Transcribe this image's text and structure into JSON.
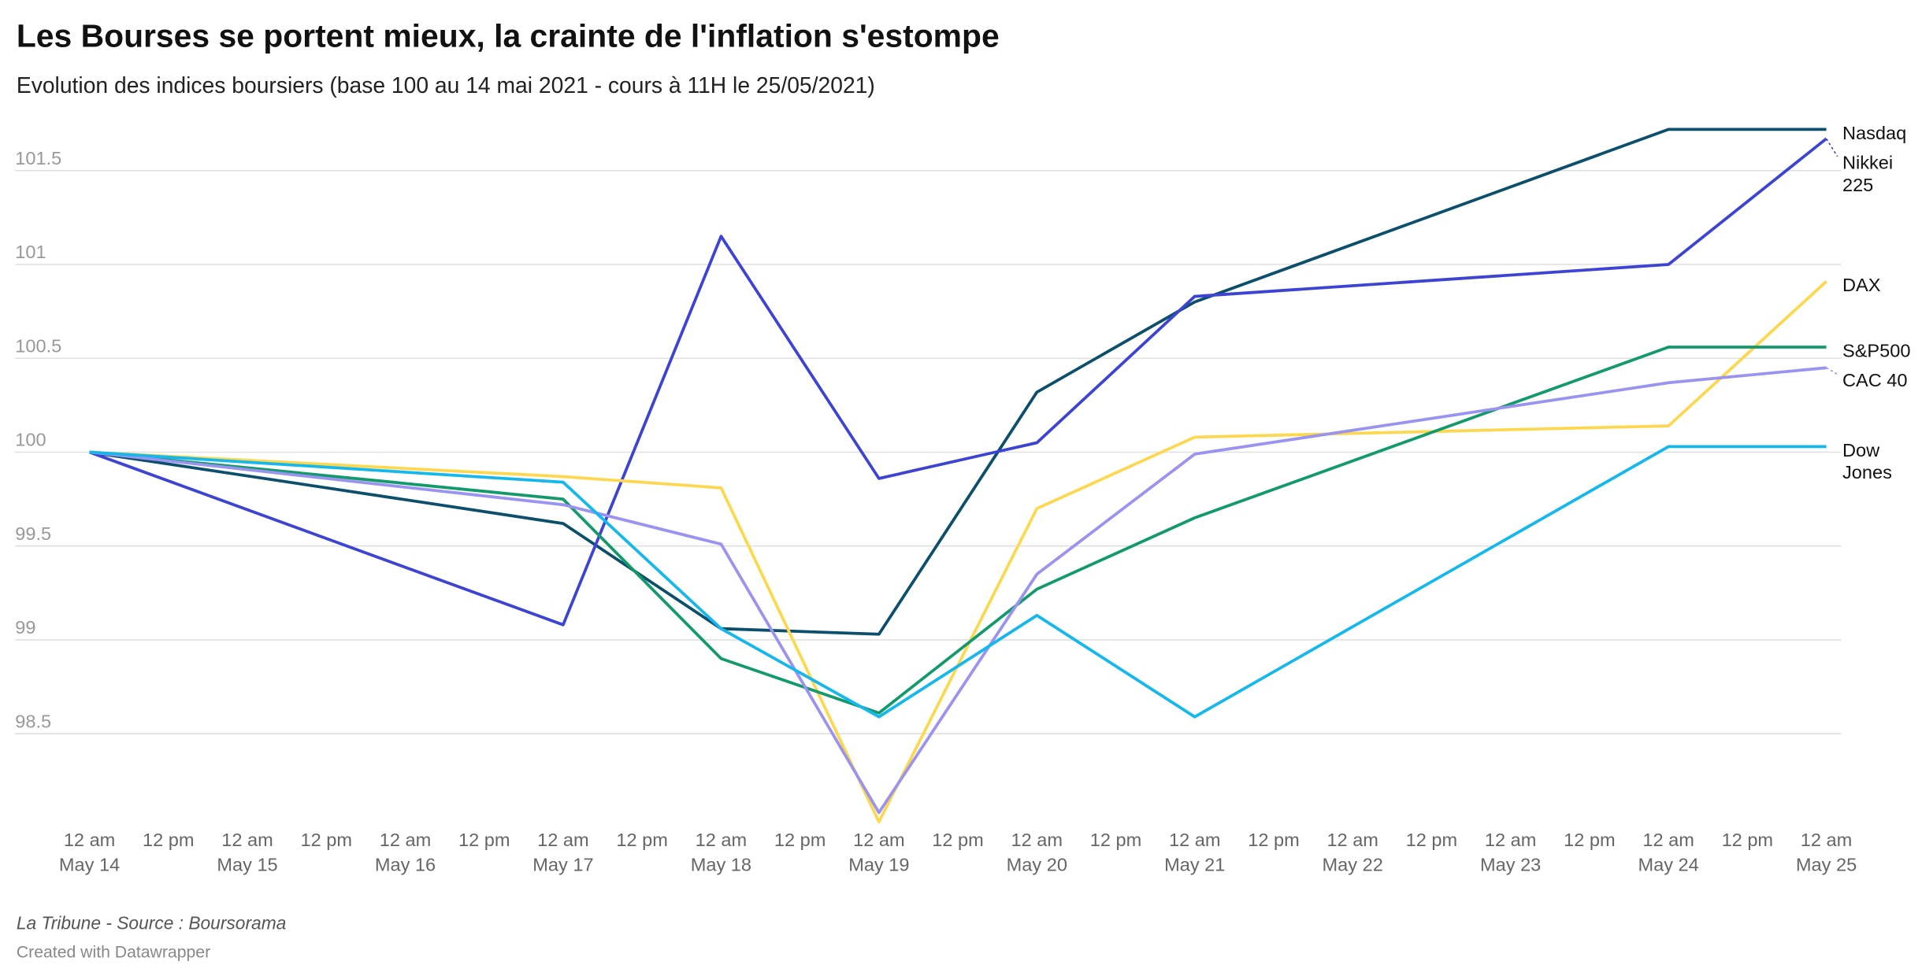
{
  "chart_data": {
    "type": "line",
    "title": "Les Bourses se portent mieux, la crainte de l'inflation s'estompe",
    "subtitle": "Evolution des indices boursiers (base 100 au 14 mai 2021 - cours à 11H le 25/05/2021)",
    "notes": "La Tribune - Source : Boursorama",
    "credit": "Created with Datawrapper",
    "x": [
      "May 14",
      "May 17",
      "May 18",
      "May 19",
      "May 20",
      "May 21",
      "May 24",
      "May 25"
    ],
    "xticks": [
      {
        "time": "12 am",
        "date": "May 14"
      },
      {
        "time": "12 pm",
        "date": null
      },
      {
        "time": "12 am",
        "date": "May 15"
      },
      {
        "time": "12 pm",
        "date": null
      },
      {
        "time": "12 am",
        "date": "May 16"
      },
      {
        "time": "12 pm",
        "date": null
      },
      {
        "time": "12 am",
        "date": "May 17"
      },
      {
        "time": "12 pm",
        "date": null
      },
      {
        "time": "12 am",
        "date": "May 18"
      },
      {
        "time": "12 pm",
        "date": null
      },
      {
        "time": "12 am",
        "date": "May 19"
      },
      {
        "time": "12 pm",
        "date": null
      },
      {
        "time": "12 am",
        "date": "May 20"
      },
      {
        "time": "12 pm",
        "date": null
      },
      {
        "time": "12 am",
        "date": "May 21"
      },
      {
        "time": "12 pm",
        "date": null
      },
      {
        "time": "12 am",
        "date": "May 22"
      },
      {
        "time": "12 pm",
        "date": null
      },
      {
        "time": "12 am",
        "date": "May 23"
      },
      {
        "time": "12 pm",
        "date": null
      },
      {
        "time": "12 am",
        "date": "May 24"
      },
      {
        "time": "12 pm",
        "date": null
      },
      {
        "time": "12 am",
        "date": "May 25"
      }
    ],
    "ylim": [
      98.0,
      101.75
    ],
    "yticks": [
      98.5,
      99,
      99.5,
      100,
      100.5,
      101,
      101.5
    ],
    "grid": true,
    "series": [
      {
        "name": "Nasdaq",
        "color": "#0b4f6c",
        "values": [
          100,
          99.62,
          99.06,
          99.03,
          100.32,
          100.8,
          101.72,
          101.72
        ]
      },
      {
        "name": "Nikkei 225",
        "color": "#3d44d4",
        "values": [
          100,
          99.08,
          101.15,
          99.86,
          100.05,
          100.83,
          101.0,
          101.67
        ]
      },
      {
        "name": "DAX",
        "color": "#fdd84f",
        "values": [
          100,
          99.87,
          99.81,
          98.03,
          99.7,
          100.08,
          100.14,
          100.91
        ]
      },
      {
        "name": "S&P500",
        "color": "#139a6c",
        "values": [
          100,
          99.75,
          98.9,
          98.61,
          99.27,
          99.65,
          100.56,
          100.56
        ]
      },
      {
        "name": "CAC 40",
        "color": "#9a93f0",
        "values": [
          100,
          99.72,
          99.51,
          98.08,
          99.35,
          99.99,
          100.37,
          100.45
        ]
      },
      {
        "name": "Dow Jones",
        "color": "#14b8ec",
        "values": [
          100,
          99.84,
          99.06,
          98.59,
          99.13,
          98.59,
          100.03,
          100.03
        ]
      }
    ]
  }
}
